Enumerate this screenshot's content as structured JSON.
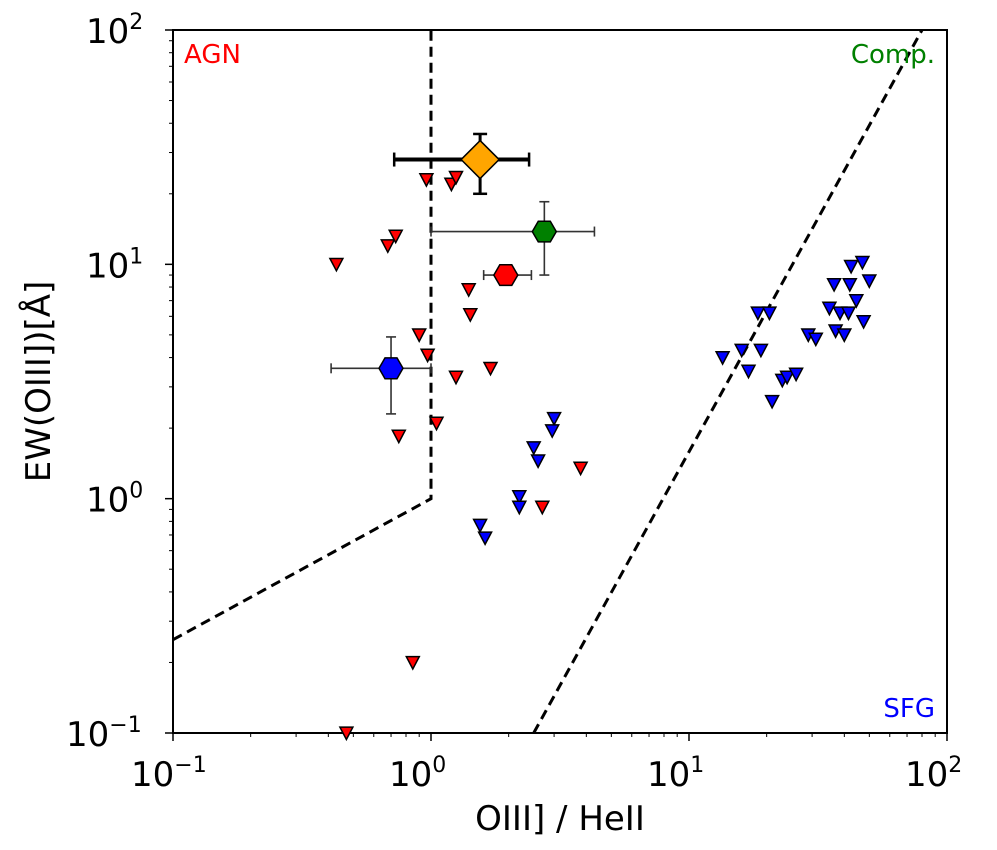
{
  "chart_data": {
    "type": "scatter",
    "xscale": "log",
    "yscale": "log",
    "xlim": [
      0.1,
      100
    ],
    "ylim": [
      0.1,
      100
    ],
    "xlabel": "OIII] / HeII",
    "ylabel": "EW(OIII])[Å]",
    "x_ticks": [
      {
        "base": "10",
        "exp": "−1"
      },
      {
        "base": "10",
        "exp": "0"
      },
      {
        "base": "10",
        "exp": "1"
      },
      {
        "base": "10",
        "exp": "2"
      }
    ],
    "y_ticks": [
      {
        "base": "10",
        "exp": "−1"
      },
      {
        "base": "10",
        "exp": "0"
      },
      {
        "base": "10",
        "exp": "1"
      },
      {
        "base": "10",
        "exp": "2"
      }
    ],
    "region_labels": [
      {
        "text": "AGN",
        "color": "#ff0000"
      },
      {
        "text": "Comp.",
        "color": "#008000"
      },
      {
        "text": "SFG",
        "color": "#0000ff"
      }
    ],
    "dividing_lines": [
      {
        "name": "agn-boundary",
        "points": [
          [
            0.1,
            0.25
          ],
          [
            1.0,
            1.0
          ],
          [
            1.0,
            100
          ]
        ]
      },
      {
        "name": "sfg-boundary",
        "points": [
          [
            2.5,
            0.1
          ],
          [
            80,
            100
          ]
        ]
      }
    ],
    "upper_limits_agn": {
      "color": "#ff0000",
      "points": [
        [
          0.43,
          10.0
        ],
        [
          0.68,
          12.0
        ],
        [
          0.73,
          13.2
        ],
        [
          0.96,
          23.0
        ],
        [
          1.2,
          22.0
        ],
        [
          1.25,
          23.5
        ],
        [
          1.4,
          7.8
        ],
        [
          1.42,
          6.1
        ],
        [
          0.9,
          5.0
        ],
        [
          0.97,
          4.1
        ],
        [
          1.25,
          3.3
        ],
        [
          1.7,
          3.6
        ],
        [
          1.05,
          2.1
        ],
        [
          0.75,
          1.85
        ],
        [
          3.8,
          1.35
        ],
        [
          2.7,
          0.92
        ],
        [
          0.85,
          0.2
        ],
        [
          0.47,
          0.1
        ]
      ]
    },
    "upper_limits_sfg": {
      "color": "#0000ff",
      "points": [
        [
          3.0,
          2.2
        ],
        [
          2.95,
          1.95
        ],
        [
          2.5,
          1.65
        ],
        [
          2.6,
          1.45
        ],
        [
          2.2,
          1.02
        ],
        [
          2.2,
          0.92
        ],
        [
          1.55,
          0.77
        ],
        [
          1.62,
          0.68
        ],
        [
          13.5,
          4.0
        ],
        [
          16.0,
          4.3
        ],
        [
          17.0,
          3.5
        ],
        [
          19.0,
          4.3
        ],
        [
          18.5,
          6.2
        ],
        [
          20.5,
          6.2
        ],
        [
          21.0,
          2.6
        ],
        [
          23.0,
          3.2
        ],
        [
          24.0,
          3.3
        ],
        [
          26.0,
          3.4
        ],
        [
          29.0,
          5.0
        ],
        [
          31.0,
          4.8
        ],
        [
          35.0,
          6.5
        ],
        [
          36.5,
          8.2
        ],
        [
          37.0,
          5.2
        ],
        [
          38.5,
          6.2
        ],
        [
          40.0,
          5.0
        ],
        [
          41.5,
          6.2
        ],
        [
          42.0,
          8.2
        ],
        [
          42.5,
          9.8
        ],
        [
          44.5,
          7.0
        ],
        [
          47.0,
          10.2
        ],
        [
          47.5,
          5.7
        ],
        [
          50.0,
          8.5
        ]
      ]
    },
    "measurements": [
      {
        "name": "orange-diamond",
        "shape": "diamond",
        "color": "#ffa500",
        "x": 1.55,
        "y": 28.0,
        "xerr": [
          0.72,
          2.4
        ],
        "yerr": [
          20.0,
          36.0
        ],
        "bold": true
      },
      {
        "name": "green-hexagon",
        "shape": "hexagon",
        "color": "#008000",
        "x": 2.75,
        "y": 13.8,
        "xerr": [
          1.0,
          4.3
        ],
        "yerr": [
          9.0,
          18.5
        ],
        "bold": false
      },
      {
        "name": "red-hexagon",
        "shape": "hexagon",
        "color": "#ff0000",
        "x": 1.95,
        "y": 9.0,
        "xerr": [
          1.6,
          2.45
        ],
        "yerr": [
          8.9,
          9.1
        ],
        "bold": false
      },
      {
        "name": "blue-hexagon",
        "shape": "hexagon",
        "color": "#0000ff",
        "x": 0.7,
        "y": 3.6,
        "xerr": [
          0.41,
          1.0
        ],
        "yerr": [
          2.3,
          4.9
        ],
        "bold": false
      }
    ]
  }
}
